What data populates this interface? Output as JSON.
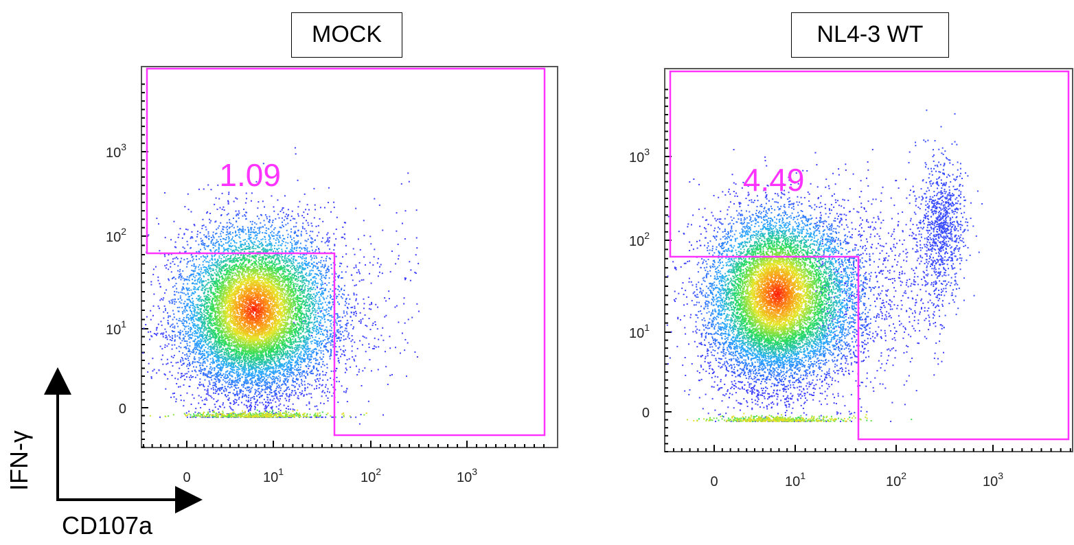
{
  "legend": {
    "y_label": "IFN-γ",
    "x_label": "CD107a"
  },
  "colors": {
    "gate": "#ff33ff",
    "density_low": "#3333ff",
    "density_mid": "#22dd55",
    "density_high": "#ff2200"
  },
  "chart_data": [
    {
      "type": "scatter",
      "title": "MOCK",
      "xlabel": "CD107a",
      "ylabel": "IFN-γ",
      "x_scale": "biexponential",
      "y_scale": "biexponential",
      "x_tick_labels": [
        "0",
        "10^1",
        "10^2",
        "10^3"
      ],
      "y_tick_labels": [
        "0",
        "10^1",
        "10^2",
        "10^3"
      ],
      "gate_percent": "1.09",
      "gate_threshold": {
        "x": 40,
        "y": 70
      },
      "main_population": {
        "x_center": 5,
        "y_center": 15
      },
      "point_sizes": {
        "main": 11000,
        "tail": 160,
        "floor": 500
      }
    },
    {
      "type": "scatter",
      "title": "NL4-3 WT",
      "xlabel": "CD107a",
      "ylabel": "IFN-γ",
      "x_scale": "biexponential",
      "y_scale": "biexponential",
      "x_tick_labels": [
        "0",
        "10^1",
        "10^2",
        "10^3"
      ],
      "y_tick_labels": [
        "0",
        "10^1",
        "10^2",
        "10^3"
      ],
      "gate_percent": "4.49",
      "gate_threshold": {
        "x": 40,
        "y": 70
      },
      "main_population": {
        "x_center": 5,
        "y_center": 25
      },
      "secondary_population": {
        "x_center": 300,
        "y_center": 150
      },
      "point_sizes": {
        "main": 11000,
        "tail": 700,
        "secondary": 900,
        "floor": 500
      }
    }
  ]
}
